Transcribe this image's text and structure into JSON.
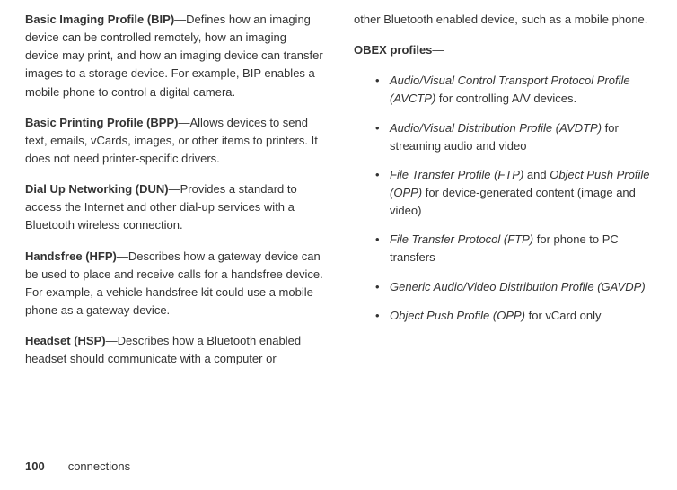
{
  "left": {
    "p1": {
      "title": "Basic Imaging Profile (BIP)",
      "body": "—Defines how an imaging device can be controlled remotely, how an imaging device may print, and how an imaging device can transfer images to a storage device. For example, BIP enables a mobile phone to control a digital camera."
    },
    "p2": {
      "title": "Basic Printing Profile (BPP)",
      "body": "—Allows devices to send text, emails, vCards, images, or other items to printers. It does not need printer-specific drivers."
    },
    "p3": {
      "title": "Dial Up Networking (DUN)",
      "body": "—Provides a standard to access the Internet and other dial-up services with a Bluetooth wireless connection."
    },
    "p4": {
      "title": "Handsfree (HFP)",
      "body": "—Describes how a gateway device can be used to place and receive calls for a handsfree device. For example, a vehicle handsfree kit could use a mobile phone as a gateway device."
    },
    "p5": {
      "title": "Headset (HSP)",
      "body": "—Describes how a Bluetooth enabled headset should communicate with a computer or"
    }
  },
  "right": {
    "cont": "other Bluetooth enabled device, such as a mobile phone.",
    "obex_title": "OBEX profiles",
    "obex_dash": "—",
    "items": [
      {
        "em": "Audio/Visual Control Transport Protocol Profile (AVCTP)",
        "rest": " for controlling A/V devices."
      },
      {
        "em": "Audio/Visual Distribution Profile (AVDTP)",
        "rest": " for streaming audio and video"
      },
      {
        "em1": "File Transfer Profile (FTP)",
        "mid": " and ",
        "em2": "Object Push Profile (OPP)",
        "rest": " for device-generated content (image and video)"
      },
      {
        "em": "File Transfer Protocol (FTP)",
        "rest": " for phone to PC transfers"
      },
      {
        "em": "Generic Audio/Video Distribution Profile (GAVDP)",
        "rest": ""
      },
      {
        "em": "Object Push Profile (OPP)",
        "rest": " for vCard only"
      }
    ]
  },
  "footer": {
    "page": "100",
    "section": "connections"
  }
}
